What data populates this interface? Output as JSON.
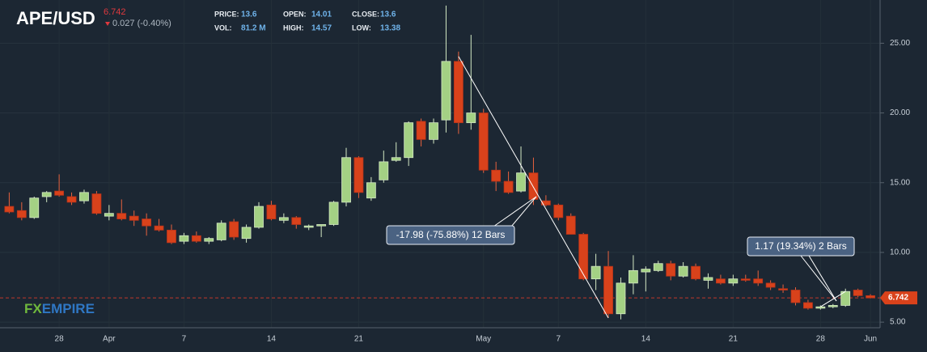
{
  "header": {
    "symbol": "APE/USD",
    "price": "6.742",
    "change": "0.027 (-0.40%)",
    "stats": [
      {
        "label": "PRICE:",
        "value": "13.6"
      },
      {
        "label": "VOL:",
        "value": "81.2 M"
      },
      {
        "label": "OPEN:",
        "value": "14.01"
      },
      {
        "label": "HIGH:",
        "value": "14.57"
      },
      {
        "label": "CLOSE:",
        "value": "13.6"
      },
      {
        "label": "LOW:",
        "value": "13.38"
      }
    ]
  },
  "watermark": [
    "FX",
    "EMPIRE"
  ],
  "chart_data": {
    "type": "candlestick",
    "categories": [
      null,
      null,
      null,
      null,
      "28",
      null,
      null,
      null,
      "Apr",
      null,
      null,
      null,
      null,
      null,
      "7",
      null,
      null,
      null,
      null,
      null,
      null,
      "14",
      null,
      null,
      null,
      null,
      null,
      null,
      "21",
      null,
      null,
      null,
      null,
      null,
      null,
      null,
      null,
      null,
      "May",
      null,
      null,
      null,
      null,
      null,
      "7",
      null,
      null,
      null,
      null,
      null,
      null,
      "14",
      null,
      null,
      null,
      null,
      null,
      null,
      "21",
      null,
      null,
      null,
      null,
      null,
      null,
      "28",
      null,
      null,
      null,
      "Jun"
    ],
    "open": [
      13.3,
      13.0,
      12.5,
      14.0,
      14.4,
      14.0,
      13.7,
      14.2,
      12.6,
      12.8,
      12.6,
      12.4,
      11.9,
      11.6,
      10.8,
      11.2,
      10.8,
      10.9,
      12.2,
      11.0,
      11.8,
      13.4,
      12.3,
      12.5,
      11.8,
      11.9,
      12.0,
      13.6,
      16.8,
      13.9,
      15.2,
      16.6,
      16.8,
      19.4,
      18.1,
      19.5,
      23.7,
      19.3,
      20.0,
      15.9,
      15.1,
      14.4,
      15.7,
      13.7,
      13.4,
      12.6,
      11.3,
      8.1,
      9.0,
      5.6,
      7.8,
      8.6,
      8.7,
      9.2,
      8.3,
      9.0,
      8.0,
      8.1,
      7.8,
      8.1,
      8.1,
      7.8,
      7.4,
      7.3,
      6.4,
      6.0,
      6.1,
      6.2,
      7.3,
      6.9
    ],
    "high": [
      14.3,
      13.6,
      14.0,
      14.4,
      15.6,
      14.3,
      14.5,
      14.4,
      13.4,
      13.8,
      13.0,
      12.8,
      12.4,
      12.0,
      11.4,
      11.5,
      11.1,
      12.3,
      12.4,
      12.0,
      13.6,
      13.7,
      12.8,
      12.6,
      12.0,
      12.0,
      13.7,
      17.5,
      16.9,
      15.4,
      17.3,
      17.9,
      19.4,
      19.6,
      19.6,
      27.7,
      24.4,
      25.6,
      20.3,
      16.5,
      15.8,
      17.6,
      16.8,
      14.1,
      13.5,
      12.8,
      11.4,
      9.9,
      10.1,
      8.2,
      9.8,
      9.0,
      9.4,
      9.4,
      9.3,
      9.2,
      8.5,
      8.4,
      8.4,
      8.4,
      8.7,
      8.0,
      7.7,
      7.5,
      6.6,
      6.2,
      6.3,
      7.4,
      7.4,
      7.0
    ],
    "low": [
      12.8,
      12.3,
      12.4,
      13.6,
      14.0,
      13.4,
      13.5,
      12.7,
      12.3,
      12.3,
      11.9,
      11.2,
      11.5,
      10.6,
      10.6,
      10.7,
      10.6,
      10.8,
      10.9,
      10.7,
      11.7,
      12.3,
      12.1,
      11.7,
      11.6,
      11.1,
      11.9,
      13.3,
      13.9,
      13.7,
      15.0,
      16.5,
      16.2,
      17.6,
      17.8,
      18.6,
      18.5,
      18.8,
      15.7,
      14.4,
      14.2,
      14.3,
      13.4,
      13.3,
      12.3,
      11.3,
      8.0,
      7.3,
      5.3,
      5.2,
      7.0,
      7.2,
      8.6,
      8.0,
      8.2,
      8.0,
      7.4,
      7.7,
      7.6,
      7.9,
      7.6,
      7.3,
      7.1,
      6.2,
      5.9,
      5.9,
      6.0,
      6.1,
      6.8,
      6.7
    ],
    "close": [
      12.9,
      12.5,
      13.9,
      14.3,
      14.1,
      13.6,
      14.3,
      12.8,
      12.8,
      12.4,
      12.3,
      11.9,
      11.6,
      10.7,
      11.2,
      10.8,
      11.0,
      12.1,
      11.1,
      11.8,
      13.3,
      12.4,
      12.5,
      12.0,
      11.9,
      12.0,
      13.6,
      16.8,
      14.3,
      15.0,
      16.5,
      16.8,
      19.3,
      18.1,
      19.3,
      23.7,
      19.3,
      20.0,
      15.9,
      15.1,
      14.3,
      15.7,
      13.8,
      13.4,
      12.5,
      11.3,
      8.1,
      9.0,
      5.6,
      7.8,
      8.7,
      8.8,
      9.2,
      8.3,
      9.0,
      8.1,
      8.2,
      7.8,
      8.1,
      8.0,
      7.8,
      7.5,
      7.3,
      6.4,
      6.0,
      6.1,
      6.2,
      7.2,
      6.9,
      6.742
    ],
    "up_color": "#a4d184",
    "down_color": "#d9421b",
    "ylim": [
      4.6,
      28.1
    ],
    "yticks": [
      {
        "value": 5,
        "label": "5.00"
      },
      {
        "value": 10,
        "label": "10.00"
      },
      {
        "value": 15,
        "label": "15.00"
      },
      {
        "value": 20,
        "label": "20.00"
      },
      {
        "value": 25,
        "label": "25.00"
      }
    ],
    "grid": true,
    "last_price": {
      "value": 6.742,
      "label": "6.742"
    },
    "annotations": [
      "-17.98 (-75.88%) 12 Bars",
      "1.17 (19.34%) 2 Bars"
    ]
  }
}
